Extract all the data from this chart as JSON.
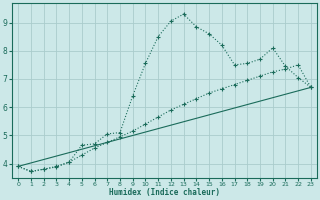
{
  "xlabel": "Humidex (Indice chaleur)",
  "bg_color": "#cce8e8",
  "grid_color": "#aacccc",
  "line_color": "#1a6b5a",
  "xlim": [
    -0.5,
    23.5
  ],
  "ylim": [
    3.5,
    9.7
  ],
  "xticks": [
    0,
    1,
    2,
    3,
    4,
    5,
    6,
    7,
    8,
    9,
    10,
    11,
    12,
    13,
    14,
    15,
    16,
    17,
    18,
    19,
    20,
    21,
    22,
    23
  ],
  "yticks": [
    4,
    5,
    6,
    7,
    8,
    9
  ],
  "series1_x": [
    0,
    1,
    2,
    3,
    4,
    5,
    6,
    7,
    8,
    9,
    10,
    11,
    12,
    13,
    14,
    15,
    16,
    17,
    18,
    19,
    20,
    21,
    22,
    23
  ],
  "series1_y": [
    3.9,
    3.72,
    3.8,
    3.88,
    4.05,
    4.65,
    4.7,
    5.05,
    5.1,
    6.4,
    7.55,
    8.5,
    9.05,
    9.3,
    8.85,
    8.6,
    8.2,
    7.5,
    7.55,
    7.7,
    8.1,
    7.45,
    7.05,
    6.7
  ],
  "series2_x": [
    0,
    1,
    2,
    3,
    4,
    5,
    6,
    7,
    8,
    9,
    10,
    11,
    12,
    13,
    14,
    15,
    16,
    17,
    18,
    19,
    20,
    21,
    22,
    23
  ],
  "series2_y": [
    3.9,
    3.72,
    3.8,
    3.9,
    4.05,
    4.3,
    4.55,
    4.75,
    4.95,
    5.15,
    5.4,
    5.65,
    5.9,
    6.1,
    6.3,
    6.5,
    6.65,
    6.8,
    6.95,
    7.1,
    7.25,
    7.35,
    7.5,
    6.7
  ],
  "series3_x": [
    0,
    23
  ],
  "series3_y": [
    3.9,
    6.7
  ]
}
